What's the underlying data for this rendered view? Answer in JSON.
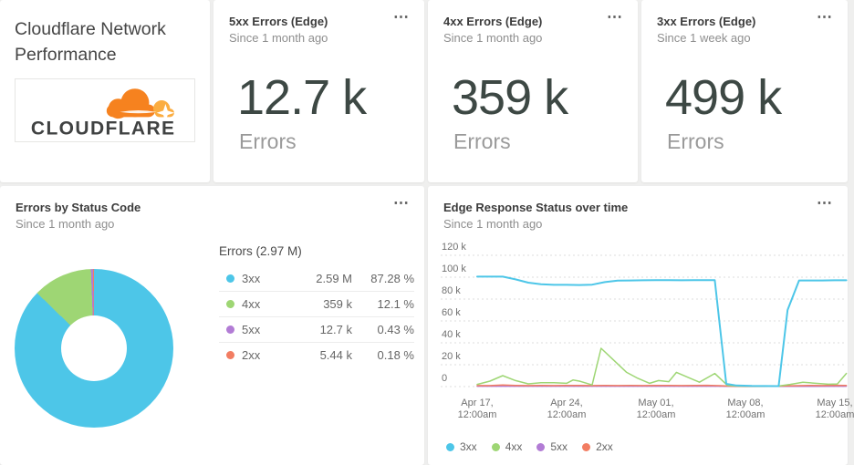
{
  "icons": {
    "menu": "⋯"
  },
  "colors": {
    "c3xx": "#4dc6e8",
    "c4xx": "#9ed674",
    "c5xx": "#b27cd5",
    "c2xx": "#f27d62",
    "logo_orange": "#f6821f",
    "logo_light_orange": "#fbad41",
    "logo_text_gray": "#404242"
  },
  "header_card": {
    "title": "Cloudflare Network Performance",
    "logo_text": "CLOUDFLARE"
  },
  "stat_cards": [
    {
      "title": "5xx Errors (Edge)",
      "timerange": "Since 1 month ago",
      "value": "12.7 k",
      "unit_label": "Errors"
    },
    {
      "title": "4xx Errors (Edge)",
      "timerange": "Since 1 month ago",
      "value": "359 k",
      "unit_label": "Errors"
    },
    {
      "title": "3xx Errors (Edge)",
      "timerange": "Since 1 week ago",
      "value": "499 k",
      "unit_label": "Errors"
    }
  ],
  "chart_data": [
    {
      "type": "pie",
      "donut": true,
      "title": "Errors by Status Code",
      "timerange": "Since 1 month ago",
      "total_label": "Errors (2.97 M)",
      "segments": [
        {
          "label": "3xx",
          "value": "2.59 M",
          "pct": 87.28,
          "pct_label": "87.28 %",
          "color": "#4dc6e8"
        },
        {
          "label": "4xx",
          "value": "359 k",
          "pct": 12.1,
          "pct_label": "12.1 %",
          "color": "#9ed674"
        },
        {
          "label": "5xx",
          "value": "12.7 k",
          "pct": 0.43,
          "pct_label": "0.43 %",
          "color": "#b27cd5"
        },
        {
          "label": "2xx",
          "value": "5.44 k",
          "pct": 0.18,
          "pct_label": "0.18 %",
          "color": "#f27d62"
        }
      ]
    },
    {
      "type": "line",
      "title": "Edge Response Status over time",
      "timerange": "Since 1 month ago",
      "grid": "dotted horizontal",
      "legend_position": "bottom-left",
      "ylim_k": [
        0,
        120
      ],
      "y_ticks": [
        {
          "v": 0,
          "label": "0"
        },
        {
          "v": 20,
          "label": "20 k"
        },
        {
          "v": 40,
          "label": "40 k"
        },
        {
          "v": 60,
          "label": "60 k"
        },
        {
          "v": 80,
          "label": "80 k"
        },
        {
          "v": 100,
          "label": "100 k"
        },
        {
          "v": 120,
          "label": "120 k"
        }
      ],
      "x_ticks": [
        {
          "day": 0,
          "label": "Apr 17,",
          "sub": "12:00am"
        },
        {
          "day": 7,
          "label": "Apr 24,",
          "sub": "12:00am"
        },
        {
          "day": 14,
          "label": "May 01,",
          "sub": "12:00am"
        },
        {
          "day": 21,
          "label": "May 08,",
          "sub": "12:00am"
        },
        {
          "day": 28,
          "label": "May 15,",
          "sub": "12:00am"
        }
      ],
      "series": [
        {
          "name": "3xx",
          "color": "#4dc6e8",
          "points": [
            [
              0,
              100.5
            ],
            [
              1,
              100.5
            ],
            [
              2,
              100.5
            ],
            [
              3,
              98
            ],
            [
              4,
              95
            ],
            [
              5,
              93.5
            ],
            [
              6,
              93
            ],
            [
              7,
              93
            ],
            [
              8,
              92.8
            ],
            [
              9,
              93.2
            ],
            [
              10,
              95.5
            ],
            [
              11,
              96.8
            ],
            [
              12,
              97
            ],
            [
              13,
              97.2
            ],
            [
              14,
              97.3
            ],
            [
              15,
              97.3
            ],
            [
              16,
              97.2
            ],
            [
              17,
              97.3
            ],
            [
              18,
              97.3
            ],
            [
              18.6,
              97.3
            ],
            [
              19.5,
              2.5
            ],
            [
              20.3,
              1
            ],
            [
              21.5,
              0.6
            ],
            [
              22.5,
              0.5
            ],
            [
              23.6,
              0.4
            ],
            [
              24.3,
              70
            ],
            [
              25.2,
              97
            ],
            [
              26,
              97
            ],
            [
              27,
              97
            ],
            [
              28,
              97.2
            ],
            [
              28.9,
              97.2
            ]
          ]
        },
        {
          "name": "4xx",
          "color": "#9ed674",
          "points": [
            [
              0,
              2
            ],
            [
              1,
              5
            ],
            [
              2,
              10
            ],
            [
              3,
              5.5
            ],
            [
              4,
              2.5
            ],
            [
              5,
              3.5
            ],
            [
              6,
              3.5
            ],
            [
              7,
              3
            ],
            [
              7.5,
              6
            ],
            [
              8,
              5
            ],
            [
              9,
              1.5
            ],
            [
              9.7,
              35
            ],
            [
              10.7,
              24
            ],
            [
              11.7,
              13
            ],
            [
              12.5,
              8
            ],
            [
              13.5,
              3
            ],
            [
              14.2,
              5.5
            ],
            [
              15,
              4.5
            ],
            [
              15.6,
              13
            ],
            [
              16.6,
              8
            ],
            [
              17.4,
              4
            ],
            [
              18.6,
              12
            ],
            [
              19.6,
              1
            ],
            [
              20.5,
              0.4
            ],
            [
              22,
              0.3
            ],
            [
              23.6,
              0.5
            ],
            [
              24.5,
              2
            ],
            [
              25.5,
              4
            ],
            [
              26.5,
              3
            ],
            [
              27.5,
              2.2
            ],
            [
              28.2,
              2.4
            ],
            [
              28.9,
              12
            ]
          ]
        },
        {
          "name": "5xx",
          "color": "#b27cd5",
          "points": [
            [
              0,
              0.3
            ],
            [
              5,
              0.3
            ],
            [
              10,
              0.35
            ],
            [
              15,
              0.3
            ],
            [
              19,
              0.3
            ],
            [
              21,
              0.1
            ],
            [
              23,
              0.15
            ],
            [
              24,
              0.2
            ],
            [
              28.9,
              0.3
            ]
          ]
        },
        {
          "name": "2xx",
          "color": "#f27d62",
          "points": [
            [
              0,
              0.9
            ],
            [
              1,
              0.9
            ],
            [
              2,
              1.4
            ],
            [
              3,
              1.1
            ],
            [
              4,
              0.9
            ],
            [
              5,
              1
            ],
            [
              6,
              0.9
            ],
            [
              7,
              1
            ],
            [
              8,
              1.1
            ],
            [
              9,
              0.9
            ],
            [
              10,
              1
            ],
            [
              11,
              0.9
            ],
            [
              12,
              1
            ],
            [
              13,
              0.9
            ],
            [
              14,
              1
            ],
            [
              15,
              1.1
            ],
            [
              16,
              0.9
            ],
            [
              17,
              1
            ],
            [
              18,
              1.2
            ],
            [
              19,
              0.8
            ],
            [
              20,
              0.3
            ],
            [
              21,
              0.2
            ],
            [
              22,
              0.2
            ],
            [
              23,
              0.3
            ],
            [
              24,
              0.6
            ],
            [
              25,
              0.8
            ],
            [
              26,
              1.1
            ],
            [
              27,
              0.9
            ],
            [
              28,
              1.2
            ],
            [
              28.9,
              1
            ]
          ]
        }
      ]
    }
  ]
}
